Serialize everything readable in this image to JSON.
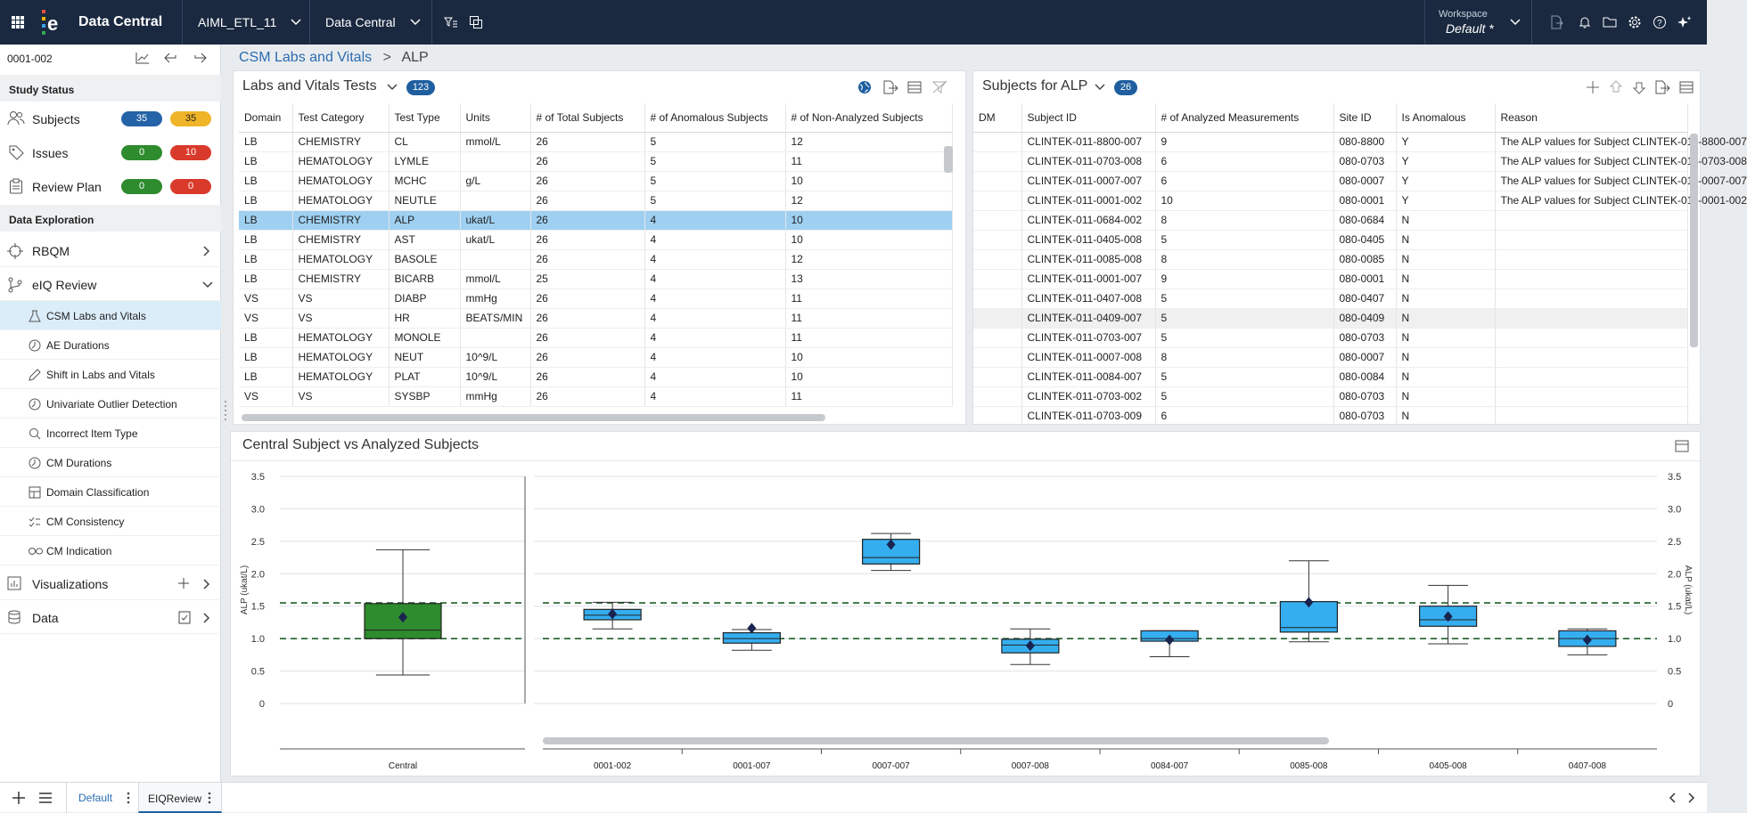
{
  "app": {
    "title": "Data Central",
    "project": "AIML_ETL_11",
    "module": "Data Central",
    "workspace_label": "Workspace",
    "workspace_value": "Default *"
  },
  "sidebar": {
    "subject_id": "0001-002",
    "study_status_label": "Study Status",
    "status_items": [
      {
        "label": "Subjects",
        "a": "35",
        "b": "35",
        "a_color": "#2563a8",
        "b_color": "#f0b429"
      },
      {
        "label": "Issues",
        "a": "0",
        "b": "10",
        "a_color": "#2e8b2e",
        "b_color": "#d93a2b"
      },
      {
        "label": "Review Plan",
        "a": "0",
        "b": "0",
        "a_color": "#2e8b2e",
        "b_color": "#d93a2b"
      }
    ],
    "data_exploration_label": "Data Exploration",
    "rbqm": "RBQM",
    "eiq": "eIQ Review",
    "eiq_items": [
      "CSM Labs and Vitals",
      "AE Durations",
      "Shift in Labs and Vitals",
      "Univariate Outlier Detection",
      "Incorrect Item Type",
      "CM Durations",
      "Domain Classification",
      "CM Consistency",
      "CM Indication"
    ],
    "visualizations": "Visualizations",
    "data": "Data"
  },
  "breadcrumb": {
    "parent": "CSM Labs and Vitals",
    "sep": ">",
    "current": "ALP"
  },
  "tests_panel": {
    "title": "Labs and Vitals Tests",
    "count": "123",
    "columns": [
      "Domain",
      "Test Category",
      "Test Type",
      "Units",
      "# of Total Subjects",
      "# of Anomalous Subjects",
      "# of Non-Analyzed Subjects"
    ],
    "rows": [
      [
        "LB",
        "CHEMISTRY",
        "CL",
        "mmol/L",
        "26",
        "5",
        "12"
      ],
      [
        "LB",
        "HEMATOLOGY",
        "LYMLE",
        "",
        "26",
        "5",
        "11"
      ],
      [
        "LB",
        "HEMATOLOGY",
        "MCHC",
        "g/L",
        "26",
        "5",
        "10"
      ],
      [
        "LB",
        "HEMATOLOGY",
        "NEUTLE",
        "",
        "26",
        "5",
        "12"
      ],
      [
        "LB",
        "CHEMISTRY",
        "ALP",
        "ukat/L",
        "26",
        "4",
        "10"
      ],
      [
        "LB",
        "CHEMISTRY",
        "AST",
        "ukat/L",
        "26",
        "4",
        "10"
      ],
      [
        "LB",
        "HEMATOLOGY",
        "BASOLE",
        "",
        "26",
        "4",
        "12"
      ],
      [
        "LB",
        "CHEMISTRY",
        "BICARB",
        "mmol/L",
        "25",
        "4",
        "13"
      ],
      [
        "VS",
        "VS",
        "DIABP",
        "mmHg",
        "26",
        "4",
        "11"
      ],
      [
        "VS",
        "VS",
        "HR",
        "BEATS/MIN",
        "26",
        "4",
        "11"
      ],
      [
        "LB",
        "HEMATOLOGY",
        "MONOLE",
        "",
        "26",
        "4",
        "11"
      ],
      [
        "LB",
        "HEMATOLOGY",
        "NEUT",
        "10^9/L",
        "26",
        "4",
        "10"
      ],
      [
        "LB",
        "HEMATOLOGY",
        "PLAT",
        "10^9/L",
        "26",
        "4",
        "10"
      ],
      [
        "VS",
        "VS",
        "SYSBP",
        "mmHg",
        "26",
        "4",
        "11"
      ]
    ]
  },
  "subjects_panel": {
    "title": "Subjects for ALP",
    "count": "26",
    "columns": [
      "DM",
      "Subject ID",
      "# of Analyzed Measurements",
      "Site ID",
      "Is Anomalous",
      "Reason"
    ],
    "rows": [
      [
        "",
        "CLINTEK-011-8800-007",
        "9",
        "080-8800",
        "Y",
        "The ALP values for Subject CLINTEK-011-8800-007"
      ],
      [
        "",
        "CLINTEK-011-0703-008",
        "6",
        "080-0703",
        "Y",
        "The ALP values for Subject CLINTEK-011-0703-008"
      ],
      [
        "",
        "CLINTEK-011-0007-007",
        "6",
        "080-0007",
        "Y",
        "The ALP values for Subject CLINTEK-011-0007-007"
      ],
      [
        "",
        "CLINTEK-011-0001-002",
        "10",
        "080-0001",
        "Y",
        "The ALP values for Subject CLINTEK-011-0001-002"
      ],
      [
        "",
        "CLINTEK-011-0684-002",
        "8",
        "080-0684",
        "N",
        ""
      ],
      [
        "",
        "CLINTEK-011-0405-008",
        "5",
        "080-0405",
        "N",
        ""
      ],
      [
        "",
        "CLINTEK-011-0085-008",
        "8",
        "080-0085",
        "N",
        ""
      ],
      [
        "",
        "CLINTEK-011-0001-007",
        "9",
        "080-0001",
        "N",
        ""
      ],
      [
        "",
        "CLINTEK-011-0407-008",
        "5",
        "080-0407",
        "N",
        ""
      ],
      [
        "",
        "CLINTEK-011-0409-007",
        "5",
        "080-0409",
        "N",
        ""
      ],
      [
        "",
        "CLINTEK-011-0703-007",
        "5",
        "080-0703",
        "N",
        ""
      ],
      [
        "",
        "CLINTEK-011-0007-008",
        "8",
        "080-0007",
        "N",
        ""
      ],
      [
        "",
        "CLINTEK-011-0084-007",
        "5",
        "080-0084",
        "N",
        ""
      ],
      [
        "",
        "CLINTEK-011-0703-002",
        "5",
        "080-0703",
        "N",
        ""
      ],
      [
        "",
        "CLINTEK-011-0703-009",
        "6",
        "080-0703",
        "N",
        ""
      ]
    ]
  },
  "chart_panel": {
    "title": "Central Subject vs Analyzed Subjects"
  },
  "chart_data": {
    "type": "box",
    "title": "",
    "ylabel": "ALP (ukat/L)",
    "ylim": [
      0,
      3.5
    ],
    "yticks": [
      "0",
      "0.5",
      "1.0",
      "1.5",
      "2.0",
      "2.5",
      "3.0",
      "3.5"
    ],
    "reference_lines": [
      1.0,
      1.55
    ],
    "central": {
      "category": "Central",
      "color": "#2e8b2e",
      "min": 0.44,
      "q1": 1.0,
      "median": 1.13,
      "q3": 1.54,
      "max": 2.37,
      "mean": 1.33
    },
    "subjects_color": "#35aef0",
    "subjects": [
      {
        "category": "0001-002",
        "min": 1.15,
        "q1": 1.29,
        "median": 1.36,
        "q3": 1.45,
        "max": 1.56,
        "mean": 1.38
      },
      {
        "category": "0001-007",
        "min": 0.82,
        "q1": 0.93,
        "median": 1.0,
        "q3": 1.09,
        "max": 1.14,
        "mean": 1.16
      },
      {
        "category": "0007-007",
        "min": 2.05,
        "q1": 2.15,
        "median": 2.25,
        "q3": 2.53,
        "max": 2.62,
        "mean": 2.45
      },
      {
        "category": "0007-008",
        "min": 0.6,
        "q1": 0.78,
        "median": 0.9,
        "q3": 0.99,
        "max": 1.15,
        "mean": 0.89
      },
      {
        "category": "0084-007",
        "min": 0.72,
        "q1": 0.96,
        "median": 1.0,
        "q3": 1.12,
        "max": 1.12,
        "mean": 0.98
      },
      {
        "category": "0085-008",
        "min": 0.95,
        "q1": 1.1,
        "median": 1.17,
        "q3": 1.57,
        "max": 2.2,
        "mean": 1.56
      },
      {
        "category": "0405-008",
        "min": 0.92,
        "q1": 1.19,
        "median": 1.29,
        "q3": 1.5,
        "max": 1.82,
        "mean": 1.34
      },
      {
        "category": "0407-008",
        "min": 0.75,
        "q1": 0.88,
        "median": 1.0,
        "q3": 1.12,
        "max": 1.15,
        "mean": 0.98
      }
    ]
  },
  "bottom_tabs": [
    "Default",
    "EIQReview"
  ]
}
